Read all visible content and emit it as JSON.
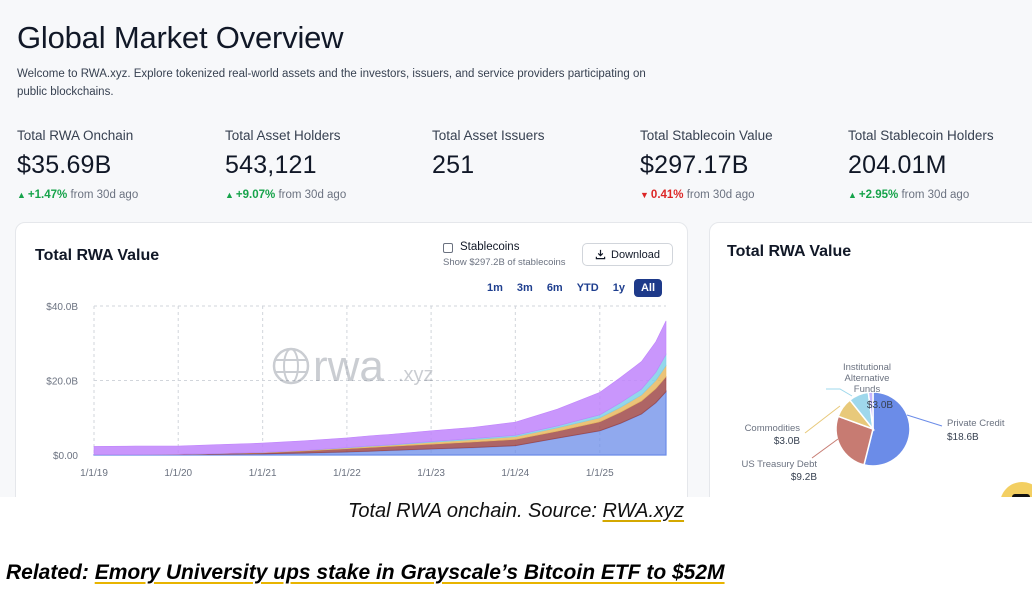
{
  "page": {
    "title": "Global Market Overview",
    "intro": "Welcome to RWA.xyz. Explore tokenized real-world assets and the investors, issuers, and service providers participating on public blockchains."
  },
  "stats": [
    {
      "label": "Total RWA Onchain",
      "value": "$35.69B",
      "change": "+1.47%",
      "direction": "up",
      "suffix": "from 30d ago"
    },
    {
      "label": "Total Asset Holders",
      "value": "543,121",
      "change": "+9.07%",
      "direction": "up",
      "suffix": "from 30d ago"
    },
    {
      "label": "Total Asset Issuers",
      "value": "251",
      "change": "",
      "direction": "none",
      "suffix": ""
    },
    {
      "label": "Total Stablecoin Value",
      "value": "$297.17B",
      "change": "0.41%",
      "direction": "down",
      "suffix": "from 30d ago"
    },
    {
      "label": "Total Stablecoin Holders",
      "value": "204.01M",
      "change": "+2.95%",
      "direction": "up",
      "suffix": "from 30d ago"
    }
  ],
  "main_card": {
    "title": "Total RWA Value",
    "stablecoins_label": "Stablecoins",
    "stablecoins_sub": "Show $297.2B of stablecoins",
    "download_label": "Download",
    "ranges": [
      "1m",
      "3m",
      "6m",
      "YTD",
      "1y",
      "All"
    ],
    "active_range": "All",
    "watermark": "rwa",
    "watermark_suffix": ".xyz"
  },
  "side_card": {
    "title": "Total RWA Value"
  },
  "colors": {
    "up": "#16a34a",
    "down": "#dc2626",
    "active_range": "#1e3a8a",
    "series": [
      "#6b8ce8",
      "#a04a4a",
      "#e8b860",
      "#7fd0e8",
      "#c084fc"
    ]
  },
  "chart_data": [
    {
      "type": "area",
      "title": "",
      "xlabel": "",
      "ylabel": "",
      "x": [
        "1/1/19",
        "7/1/19",
        "1/1/20",
        "7/1/20",
        "1/1/21",
        "7/1/21",
        "1/1/22",
        "4/1/22",
        "7/1/22",
        "1/1/23",
        "7/1/23",
        "1/1/24",
        "7/1/24",
        "1/1/25",
        "4/1/25",
        "7/1/25",
        "9/1/25",
        "10/15/25"
      ],
      "x_tick_labels": [
        "1/1/19",
        "1/1/20",
        "1/1/21",
        "1/1/22",
        "1/1/23",
        "1/1/24",
        "1/1/25"
      ],
      "y_tick_labels": [
        "$0.00",
        "$20.0B",
        "$40.0B"
      ],
      "ylim": [
        0,
        40
      ],
      "stacked": true,
      "grid": true,
      "series": [
        {
          "values": [
            0.1,
            0.1,
            0.1,
            0.2,
            0.3,
            0.5,
            0.8,
            1.0,
            1.2,
            1.6,
            2.0,
            2.5,
            4.5,
            6.5,
            8.5,
            11.0,
            14.0,
            17.0
          ]
        },
        {
          "values": [
            0.0,
            0.0,
            0.1,
            0.2,
            0.3,
            0.6,
            0.9,
            1.0,
            1.1,
            1.3,
            1.5,
            1.7,
            1.9,
            2.4,
            3.0,
            3.5,
            3.8,
            4.0
          ]
        },
        {
          "values": [
            0.0,
            0.0,
            0.0,
            0.0,
            0.1,
            0.1,
            0.2,
            0.3,
            0.3,
            0.5,
            0.6,
            0.7,
            0.9,
            1.1,
            1.3,
            1.6,
            2.2,
            3.0
          ]
        },
        {
          "values": [
            0.0,
            0.0,
            0.0,
            0.0,
            0.0,
            0.0,
            0.1,
            0.1,
            0.1,
            0.2,
            0.3,
            0.4,
            0.5,
            0.8,
            1.2,
            1.6,
            2.2,
            3.0
          ]
        },
        {
          "values": [
            2.2,
            2.3,
            2.2,
            2.4,
            2.5,
            2.6,
            2.6,
            2.7,
            2.8,
            2.9,
            3.0,
            3.5,
            4.5,
            6.0,
            6.8,
            7.4,
            8.2,
            9.0
          ]
        }
      ]
    },
    {
      "type": "pie",
      "title": "",
      "slices": [
        {
          "label": "Private Credit",
          "display_value": "$18.6B",
          "value": 18.6,
          "color": "#6b8ce8"
        },
        {
          "label": "US Treasury Debt",
          "display_value": "$9.2B",
          "value": 9.2,
          "color": "#c77b72"
        },
        {
          "label": "Commodities",
          "display_value": "$3.0B",
          "value": 3.0,
          "color": "#e8c97a"
        },
        {
          "label": "Institutional Alternative Funds",
          "display_value": "$3.0B",
          "value": 3.0,
          "color": "#9fd8ec"
        },
        {
          "label": "",
          "value": 0.7,
          "color": "#c4b5fd"
        }
      ]
    }
  ],
  "caption": {
    "text": "Total RWA onchain. Source: ",
    "link": "RWA.xyz"
  },
  "related": {
    "prefix": "Related: ",
    "link": "Emory University ups stake in Grayscale’s Bitcoin ETF to $52M"
  }
}
